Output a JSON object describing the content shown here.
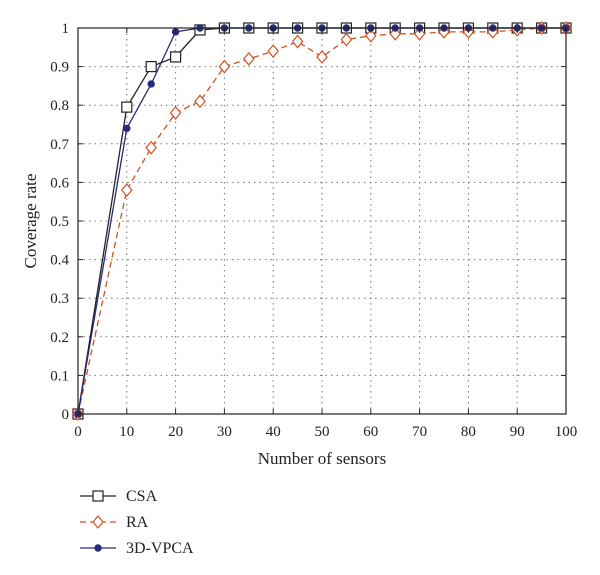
{
  "chart_data": {
    "type": "line",
    "title": "",
    "xlabel": "Number of sensors",
    "ylabel": "Coverage rate",
    "xlim": [
      0,
      100
    ],
    "ylim": [
      0,
      1
    ],
    "xticks": [
      0,
      10,
      20,
      30,
      40,
      50,
      60,
      70,
      80,
      90,
      100
    ],
    "yticks": [
      0,
      0.1,
      0.2,
      0.3,
      0.4,
      0.5,
      0.6,
      0.7,
      0.8,
      0.9,
      1
    ],
    "grid": true,
    "legend_position": "below-left",
    "x": [
      0,
      5,
      10,
      15,
      20,
      25,
      30,
      35,
      40,
      45,
      50,
      55,
      60,
      65,
      70,
      75,
      80,
      85,
      90,
      95,
      100
    ],
    "series": [
      {
        "name": "CSA",
        "color": "#222222",
        "line_style": "solid",
        "marker": "square-open",
        "x": [
          0,
          10,
          15,
          20,
          25,
          30,
          35,
          40,
          45,
          50,
          55,
          60,
          65,
          70,
          75,
          80,
          85,
          90,
          95,
          100
        ],
        "values": [
          0,
          0.795,
          0.9,
          0.925,
          0.995,
          1,
          1,
          1,
          1,
          1,
          1,
          1,
          1,
          1,
          1,
          1,
          1,
          1,
          1,
          1
        ]
      },
      {
        "name": "RA",
        "color": "#d4501e",
        "line_style": "dashed",
        "marker": "diamond-open",
        "x": [
          0,
          10,
          15,
          20,
          25,
          30,
          35,
          40,
          45,
          50,
          55,
          60,
          65,
          70,
          75,
          80,
          85,
          90,
          95,
          100
        ],
        "values": [
          0,
          0.58,
          0.69,
          0.78,
          0.81,
          0.9,
          0.92,
          0.94,
          0.965,
          0.925,
          0.97,
          0.98,
          0.985,
          0.985,
          0.99,
          0.99,
          0.99,
          0.995,
          1,
          1
        ]
      },
      {
        "name": "3D-VPCA",
        "color": "#2a2a7a",
        "line_style": "solid",
        "marker": "circle-filled",
        "x": [
          0,
          10,
          15,
          20,
          25,
          30,
          35,
          40,
          45,
          50,
          55,
          60,
          65,
          70,
          75,
          80,
          85,
          90,
          95,
          100
        ],
        "values": [
          0,
          0.74,
          0.855,
          0.99,
          1,
          1,
          1,
          1,
          1,
          1,
          1,
          1,
          1,
          1,
          1,
          1,
          1,
          1,
          1,
          1
        ]
      }
    ]
  }
}
